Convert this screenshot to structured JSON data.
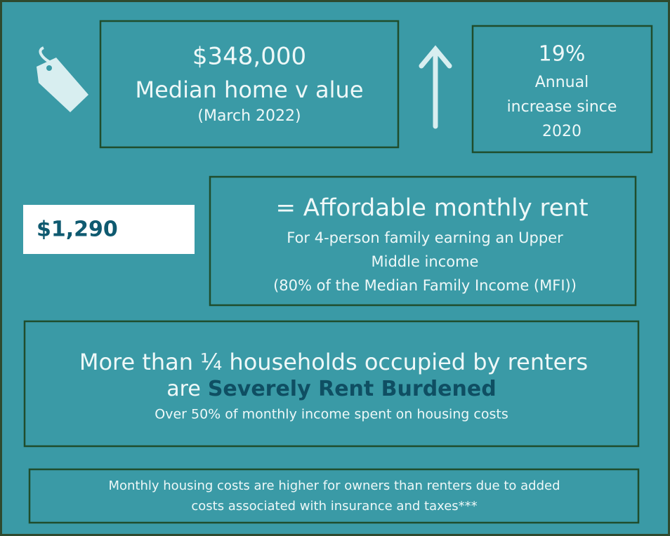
{
  "home_value": {
    "amount": "$348,000",
    "label": "Median home v alue",
    "date": "(March 2022)"
  },
  "increase": {
    "percent": "19%",
    "lines": [
      "Annual",
      "increase since",
      "2020"
    ]
  },
  "rent": {
    "amount": "$1,290",
    "title": "= Affordable monthly rent",
    "lines": [
      "For 4-person family earning an Upper",
      "Middle income",
      "(80% of the Median Family Income (MFI))"
    ]
  },
  "burden": {
    "line1": "More than ¼ households occupied by renters",
    "prefix": "are",
    "emphasis": "Severely Rent Burdened",
    "note": "Over 50% of monthly income spent on housing costs"
  },
  "footer": {
    "lines": [
      "Monthly housing costs are higher for owners than renters due to added",
      "costs associated with insurance and taxes***"
    ]
  }
}
